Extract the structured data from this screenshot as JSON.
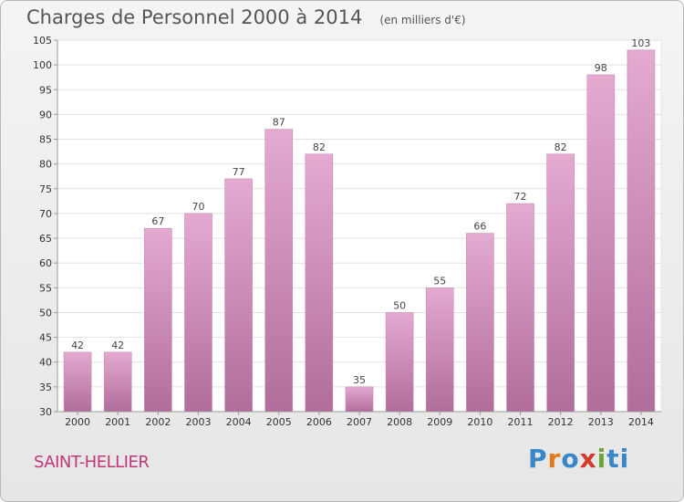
{
  "header": {
    "title": "Charges de Personnel 2000 à 2014",
    "unit_note": "(en milliers d'€)"
  },
  "footer": {
    "place": "SAINT-HELLIER",
    "logo_text": "Proxiti"
  },
  "colors": {
    "bar_top": "#e4aad0",
    "bar_bottom": "#b06d9a",
    "place_text": "#c0387a"
  },
  "chart_data": {
    "type": "bar",
    "title": "Charges de Personnel 2000 à 2014",
    "subtitle": "(en milliers d'€)",
    "xlabel": "",
    "ylabel": "",
    "categories": [
      "2000",
      "2001",
      "2002",
      "2003",
      "2004",
      "2005",
      "2006",
      "2007",
      "2008",
      "2009",
      "2010",
      "2011",
      "2012",
      "2013",
      "2014"
    ],
    "values": [
      42,
      42,
      67,
      70,
      77,
      87,
      82,
      35,
      50,
      55,
      66,
      72,
      82,
      98,
      103
    ],
    "ylim": [
      30,
      105
    ],
    "yticks": [
      30,
      35,
      40,
      45,
      50,
      55,
      60,
      65,
      70,
      75,
      80,
      85,
      90,
      95,
      100,
      105
    ],
    "grid": true,
    "legend": "none"
  }
}
